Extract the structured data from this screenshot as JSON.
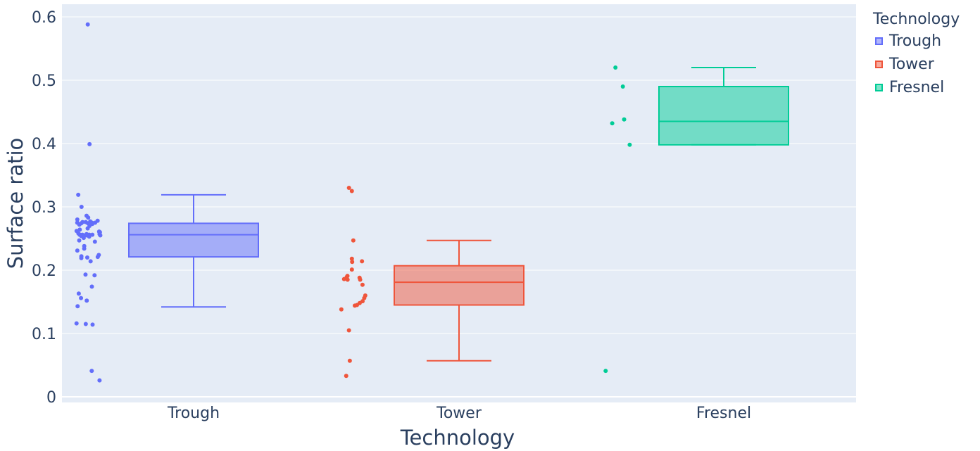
{
  "chart_data": {
    "type": "box",
    "xlabel": "Technology",
    "ylabel": "Surface ratio",
    "ylim": [
      0,
      0.6
    ],
    "yticks": [
      0,
      0.1,
      0.2,
      0.3,
      0.4,
      0.5,
      0.6
    ],
    "ytick_labels": [
      "0",
      "0.1",
      "0.2",
      "0.3",
      "0.4",
      "0.5",
      "0.6"
    ],
    "legend": {
      "title": "Technology",
      "position": "top-right"
    },
    "grid": true,
    "categories": [
      "Trough",
      "Tower",
      "Fresnel"
    ],
    "series": [
      {
        "name": "Trough",
        "color": "#636efa",
        "box": {
          "q1": 0.221,
          "median": 0.256,
          "q3": 0.274,
          "lower_whisker": 0.142,
          "upper_whisker": 0.319
        },
        "points": [
          0.588,
          0.399,
          0.319,
          0.3,
          0.286,
          0.283,
          0.28,
          0.278,
          0.277,
          0.276,
          0.276,
          0.275,
          0.275,
          0.275,
          0.274,
          0.274,
          0.273,
          0.272,
          0.27,
          0.266,
          0.264,
          0.262,
          0.261,
          0.26,
          0.258,
          0.257,
          0.257,
          0.256,
          0.256,
          0.256,
          0.256,
          0.256,
          0.256,
          0.255,
          0.255,
          0.254,
          0.253,
          0.251,
          0.247,
          0.245,
          0.238,
          0.234,
          0.231,
          0.224,
          0.222,
          0.221,
          0.22,
          0.219,
          0.214,
          0.193,
          0.192,
          0.174,
          0.163,
          0.156,
          0.152,
          0.143,
          0.116,
          0.115,
          0.114,
          0.041,
          0.026
        ]
      },
      {
        "name": "Tower",
        "color": "#ef553b",
        "box": {
          "q1": 0.145,
          "median": 0.181,
          "q3": 0.207,
          "lower_whisker": 0.057,
          "upper_whisker": 0.247
        },
        "points": [
          0.33,
          0.325,
          0.247,
          0.218,
          0.214,
          0.213,
          0.201,
          0.191,
          0.189,
          0.188,
          0.186,
          0.185,
          0.185,
          0.177,
          0.16,
          0.156,
          0.151,
          0.148,
          0.145,
          0.144,
          0.138,
          0.105,
          0.057,
          0.033
        ]
      },
      {
        "name": "Fresnel",
        "color": "#00cc96",
        "box": {
          "q1": 0.398,
          "median": 0.435,
          "q3": 0.49,
          "lower_whisker": 0.398,
          "upper_whisker": 0.52
        },
        "points": [
          0.52,
          0.49,
          0.438,
          0.432,
          0.398,
          0.041
        ]
      }
    ]
  }
}
